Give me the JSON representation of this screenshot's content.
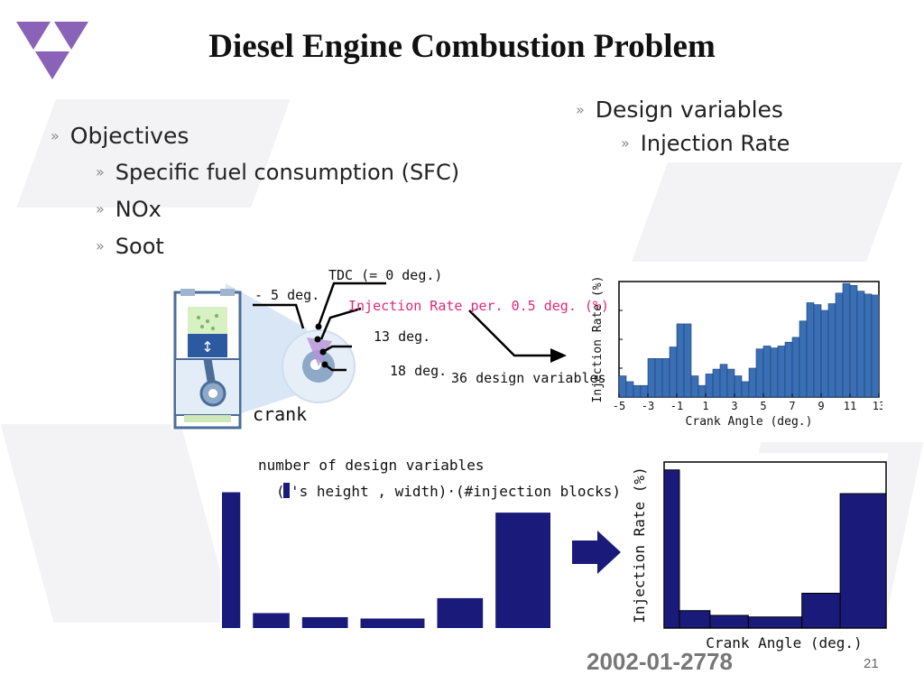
{
  "slide": {
    "title": "Diesel Engine Combustion Problem",
    "objectives": {
      "label": "Objectives",
      "items": [
        "Specific fuel consumption (SFC)",
        "NOx",
        "Soot"
      ]
    },
    "design_variables": {
      "label": "Design variables",
      "items": [
        "Injection Rate"
      ]
    },
    "footer_code": "2002-01-2778",
    "page_number": "21",
    "brand_color": "#8a63b8"
  },
  "engine_diagram": {
    "labels": {
      "tdc": "TDC (= 0 deg.)",
      "minus5": "- 5 deg.",
      "injection_rate": "Injection Rate per. 0.5 deg. (%)",
      "deg13": "13 deg.",
      "deg18": "18 deg.",
      "design_vars": "36 design variables",
      "crank": "crank"
    },
    "label_color": "#e0287a"
  },
  "bottom_diagram": {
    "caption1": "number of design variables",
    "caption2_pre": "(",
    "caption2_post": "'s height , width)·(#injection blocks)"
  },
  "chart_data": [
    {
      "type": "bar",
      "xlabel": "Crank Angle (deg.)",
      "ylabel": "Injection Rate (%)",
      "xlim": [
        -5,
        13
      ],
      "xticks": [
        -5,
        -3,
        -1,
        1,
        3,
        5,
        7,
        9,
        11,
        13
      ],
      "x": [
        -5,
        -4.5,
        -4,
        -3.5,
        -3,
        -2.5,
        -2,
        -1.5,
        -1,
        -0.5,
        0,
        0.5,
        1,
        1.5,
        2,
        2.5,
        3,
        3.5,
        4,
        4.5,
        5,
        5.5,
        6,
        6.5,
        7,
        7.5,
        8,
        8.5,
        9,
        9.5,
        10,
        10.5,
        11,
        11.5,
        12,
        12.5
      ],
      "values": [
        2.2,
        1.6,
        1.2,
        1.2,
        4.0,
        4.0,
        4.0,
        5.2,
        7.6,
        7.6,
        2.2,
        1.2,
        2.4,
        2.9,
        3.4,
        2.9,
        2.2,
        1.6,
        3.0,
        5.0,
        5.3,
        5.1,
        5.3,
        5.7,
        6.2,
        7.9,
        9.8,
        9.6,
        9.0,
        9.7,
        10.8,
        11.8,
        11.6,
        11.0,
        10.7,
        10.6
      ],
      "ylim": [
        0,
        12
      ],
      "color": "#3a6fb5"
    },
    {
      "type": "bar",
      "xlabel": "Crank Angle (deg.)",
      "ylabel": "Injection Rate (%)",
      "blocks": [
        {
          "width": 1.0,
          "height": 10.0
        },
        {
          "width": 2.0,
          "height": 1.1
        },
        {
          "width": 2.5,
          "height": 0.8
        },
        {
          "width": 3.5,
          "height": 0.7
        },
        {
          "width": 2.5,
          "height": 2.2
        },
        {
          "width": 3.0,
          "height": 8.5
        }
      ],
      "ylim": [
        0,
        10.5
      ],
      "color": "#1a1a7a"
    }
  ]
}
